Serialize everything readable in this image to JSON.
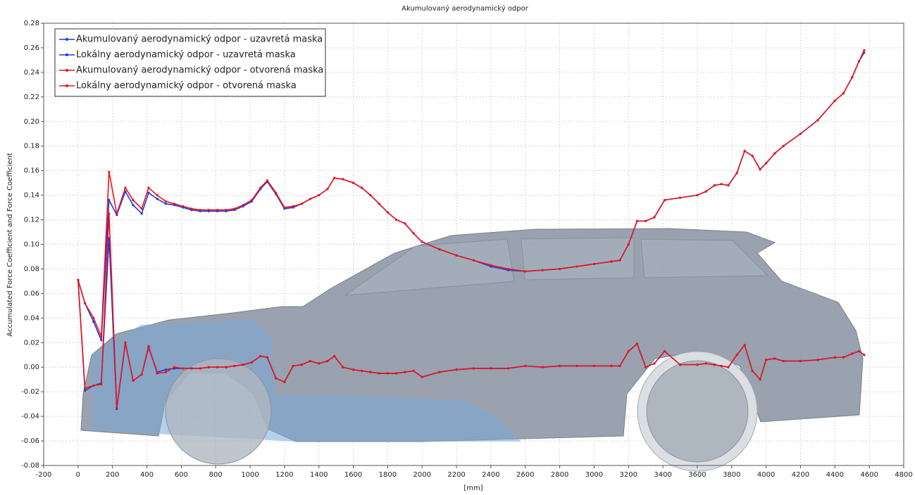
{
  "chart_data": {
    "type": "line",
    "title": "Akumulovaný aerodynamický odpor",
    "x_label": "[mm]",
    "y_label": "Accumulated Force Coefficient and Force Coefficient",
    "xlim": [
      -200,
      4800
    ],
    "ylim": [
      -0.08,
      0.28
    ],
    "xticks": [
      -200,
      0,
      200,
      400,
      600,
      800,
      1000,
      1200,
      1400,
      1600,
      1800,
      2000,
      2200,
      2400,
      2600,
      2800,
      3000,
      3200,
      3400,
      3600,
      3800,
      4000,
      4200,
      4400,
      4600,
      4800
    ],
    "yticks": [
      {
        "value": -0.08,
        "label": "-0.08"
      },
      {
        "value": -0.06,
        "label": "-0.06"
      },
      {
        "value": -0.04,
        "label": "-0.04"
      },
      {
        "value": -0.02,
        "label": "-0.02"
      },
      {
        "value": 0,
        "label": "0.00"
      },
      {
        "value": 0.02,
        "label": "0.02"
      },
      {
        "value": 0.04,
        "label": "0.04"
      },
      {
        "value": 0.06,
        "label": "0.06"
      },
      {
        "value": 0.08,
        "label": "0.08"
      },
      {
        "value": 0.1,
        "label": "0.10"
      },
      {
        "value": 0.12,
        "label": "0.12"
      },
      {
        "value": 0.14,
        "label": "0.14"
      },
      {
        "value": 0.16,
        "label": "0.16"
      },
      {
        "value": 0.18,
        "label": "0.18"
      },
      {
        "value": 0.2,
        "label": "0.20"
      },
      {
        "value": 0.22,
        "label": "0.22"
      },
      {
        "value": 0.24,
        "label": "0.24"
      },
      {
        "value": 0.26,
        "label": "0.26"
      },
      {
        "value": 0.28,
        "label": "0.28"
      }
    ],
    "grid": true,
    "legend": "upper left",
    "x": [
      0,
      40,
      90,
      135,
      180,
      225,
      275,
      320,
      370,
      410,
      460,
      510,
      560,
      610,
      660,
      710,
      760,
      810,
      860,
      910,
      960,
      1010,
      1060,
      1100,
      1150,
      1200,
      1250,
      1300,
      1350,
      1400,
      1450,
      1490,
      1540,
      1600,
      1650,
      1700,
      1750,
      1800,
      1850,
      1900,
      1950,
      2000,
      2100,
      2200,
      2300,
      2400,
      2500,
      2600,
      2700,
      2800,
      2900,
      3000,
      3100,
      3150,
      3200,
      3250,
      3300,
      3350,
      3410,
      3500,
      3600,
      3650,
      3700,
      3740,
      3780,
      3830,
      3875,
      3920,
      3965,
      4000,
      4050,
      4100,
      4200,
      4300,
      4400,
      4450,
      4500,
      4540,
      4570
    ],
    "series": [
      {
        "name": "Akumulovaný aerodynamický odpor - uzavretá maska",
        "color": "#1a3be0",
        "values": [
          0.071,
          0.052,
          0.037,
          0.022,
          0.136,
          0.124,
          0.143,
          0.132,
          0.125,
          0.142,
          0.137,
          0.133,
          0.132,
          0.13,
          0.128,
          0.127,
          0.127,
          0.127,
          0.127,
          0.128,
          0.131,
          0.135,
          0.145,
          0.151,
          0.141,
          0.129,
          0.13,
          0.133,
          0.137,
          0.14,
          0.145,
          0.154,
          0.153,
          0.15,
          0.146,
          0.14,
          0.133,
          0.126,
          0.12,
          0.117,
          0.109,
          0.102,
          0.096,
          0.091,
          0.087,
          0.082,
          0.079,
          0.078,
          0.079,
          0.08,
          0.082,
          0.084,
          0.086,
          0.087,
          0.1,
          0.119,
          0.119,
          0.122,
          0.136,
          0.138,
          0.14,
          0.143,
          0.148,
          0.149,
          0.148,
          0.158,
          0.176,
          0.172,
          0.161,
          0.166,
          0.174,
          0.18,
          0.19,
          0.201,
          0.217,
          0.223,
          0.236,
          0.249,
          0.256
        ]
      },
      {
        "name": "Lokálny aerodynamický odpor - uzavretá maska",
        "color": "#1a3be0",
        "values": [
          0.071,
          -0.019,
          -0.015,
          -0.013,
          0.105,
          -0.034,
          0.02,
          -0.011,
          -0.006,
          0.016,
          -0.004,
          -0.002,
          -0.001,
          -0.001,
          -0.001,
          -0.001,
          0.0,
          0.0,
          0.0,
          0.001,
          0.002,
          0.004,
          0.009,
          0.008,
          -0.009,
          -0.012,
          0.001,
          0.002,
          0.005,
          0.003,
          0.005,
          0.009,
          0.0,
          -0.002,
          -0.003,
          -0.004,
          -0.005,
          -0.005,
          -0.005,
          -0.004,
          -0.003,
          -0.008,
          -0.004,
          -0.002,
          -0.001,
          -0.001,
          -0.001,
          0.001,
          0.0,
          0.001,
          0.001,
          0.001,
          0.001,
          0.001,
          0.013,
          0.019,
          0.0,
          0.003,
          0.013,
          0.002,
          0.002,
          0.003,
          0.002,
          0.001,
          0.0,
          0.01,
          0.018,
          -0.003,
          -0.01,
          0.006,
          0.007,
          0.005,
          0.005,
          0.006,
          0.008,
          0.008,
          0.011,
          0.013,
          0.01
        ]
      },
      {
        "name": "Akumulovaný aerodynamický odpor - otvorená maska",
        "color": "#e8141c",
        "values": [
          0.071,
          0.052,
          0.04,
          0.025,
          0.159,
          0.125,
          0.146,
          0.136,
          0.129,
          0.146,
          0.14,
          0.135,
          0.133,
          0.131,
          0.129,
          0.128,
          0.128,
          0.128,
          0.128,
          0.129,
          0.132,
          0.136,
          0.146,
          0.152,
          0.142,
          0.13,
          0.131,
          0.133,
          0.137,
          0.14,
          0.145,
          0.154,
          0.153,
          0.15,
          0.146,
          0.14,
          0.133,
          0.126,
          0.12,
          0.117,
          0.109,
          0.102,
          0.096,
          0.091,
          0.087,
          0.083,
          0.08,
          0.078,
          0.079,
          0.08,
          0.082,
          0.084,
          0.086,
          0.087,
          0.1,
          0.119,
          0.119,
          0.122,
          0.136,
          0.138,
          0.14,
          0.143,
          0.148,
          0.149,
          0.148,
          0.158,
          0.176,
          0.172,
          0.161,
          0.166,
          0.174,
          0.18,
          0.19,
          0.201,
          0.217,
          0.223,
          0.236,
          0.249,
          0.258
        ]
      },
      {
        "name": "Lokálny aerodynamický odpor - otvorená maska",
        "color": "#e8141c",
        "values": [
          0.071,
          -0.017,
          -0.015,
          -0.014,
          0.125,
          -0.033,
          0.02,
          -0.011,
          -0.006,
          0.017,
          -0.005,
          -0.004,
          0.0,
          -0.001,
          -0.001,
          -0.001,
          0.0,
          0.0,
          0.0,
          0.001,
          0.002,
          0.004,
          0.009,
          0.008,
          -0.009,
          -0.012,
          0.001,
          0.002,
          0.005,
          0.003,
          0.005,
          0.009,
          0.0,
          -0.002,
          -0.003,
          -0.004,
          -0.005,
          -0.005,
          -0.005,
          -0.004,
          -0.003,
          -0.008,
          -0.004,
          -0.002,
          -0.001,
          -0.001,
          -0.001,
          0.001,
          0.0,
          0.001,
          0.001,
          0.001,
          0.001,
          0.001,
          0.013,
          0.019,
          0.0,
          0.003,
          0.013,
          0.002,
          0.002,
          0.003,
          0.002,
          0.001,
          0.0,
          0.01,
          0.018,
          -0.003,
          -0.01,
          0.006,
          0.007,
          0.005,
          0.005,
          0.006,
          0.008,
          0.008,
          0.011,
          0.013,
          0.01
        ]
      }
    ]
  }
}
